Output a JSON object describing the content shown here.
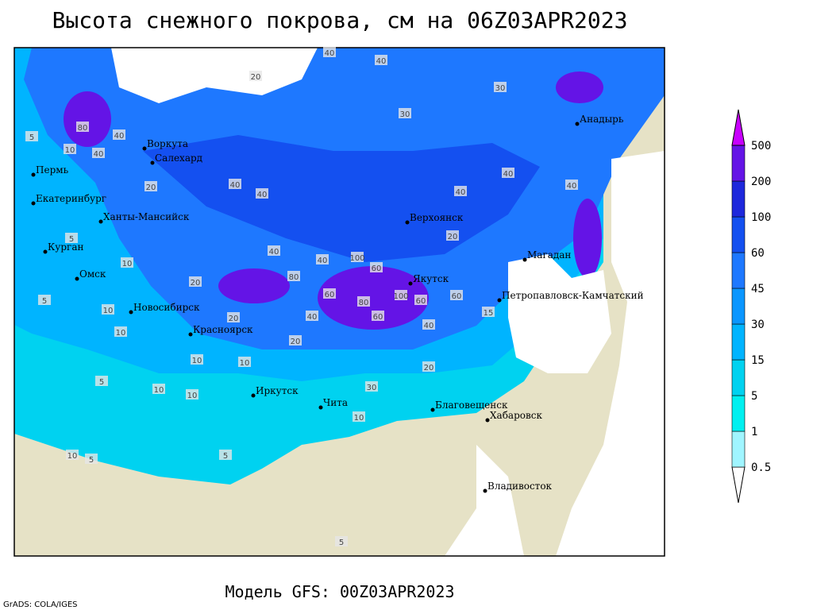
{
  "header": {
    "title": "Высота снежного покрова, см на 06Z03APR2023"
  },
  "footer": {
    "model": "Модель GFS: 00Z03APR2023",
    "credit": "GrADS: COLA/IGES"
  },
  "map": {
    "cities": [
      "Анадырь",
      "Воркута",
      "Салехард",
      "Пермь",
      "Екатеринбург",
      "Ханты-Мансийск",
      "Курган",
      "Омск",
      "Новосибирск",
      "Красноярск",
      "Иркутск",
      "Чита",
      "Благовещенск",
      "Хабаровск",
      "Владивосток",
      "Якутск",
      "Верхоянск",
      "Магадан",
      "Петропавловск-Камчатский"
    ],
    "contour_labels": [
      40,
      40,
      20,
      30,
      30,
      40,
      20,
      10,
      80,
      40,
      40,
      40,
      40,
      20,
      40,
      40,
      60,
      40,
      40,
      80,
      100,
      60,
      60,
      80,
      100,
      60,
      40,
      60,
      40,
      20,
      20,
      10,
      10,
      10,
      10,
      5,
      5,
      5,
      5,
      10,
      10,
      10,
      20,
      20,
      30,
      5,
      10,
      5,
      5,
      15,
      10
    ]
  },
  "legend": {
    "levels": [
      0.5,
      1,
      5,
      15,
      30,
      45,
      60,
      100,
      200,
      500
    ],
    "colors": [
      "#ffffff",
      "#a0f5ff",
      "#00f0f0",
      "#00d2f0",
      "#00b4ff",
      "#0a96ff",
      "#1e78ff",
      "#1450f0",
      "#1e28dc",
      "#6414e6",
      "#c800ff"
    ]
  }
}
